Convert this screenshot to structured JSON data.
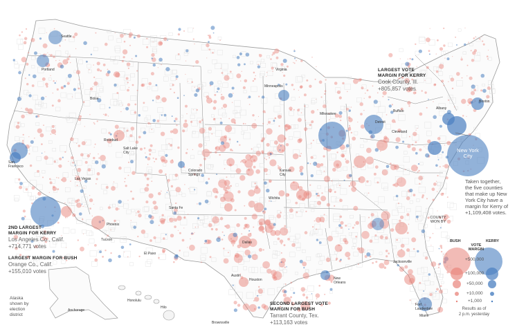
{
  "annotations": {
    "cook": {
      "heading": "LARGEST VOTE\nMARGIN FOR KERRY",
      "place": "Cook County, Ill.",
      "votes": "+805,857 votes"
    },
    "la": {
      "heading": "2ND LARGEST\nMARGIN FOR KERRY",
      "place": "Los Angeles Co., Calif.",
      "votes": "+714,771 votes"
    },
    "orange": {
      "heading": "LARGEST MARGIN FOR BUSH",
      "place": "Orange Co., Calif.",
      "votes": "+155,010 votes"
    },
    "tarrant": {
      "heading": "SECOND LARGEST VOTE\nMARGIN FOR BUSH",
      "place": "Tarrant County, Tex.",
      "votes": "+113,163 votes"
    },
    "nyc": {
      "label": "New York\nCity",
      "note": "Taken together,\nthe five counties\nthat make up New\nYork City have a\nmargin for Kerry of\n+1,109,408 votes."
    },
    "alaska": "Alaska\nshown by\nelection\ndistrict"
  },
  "legend": {
    "county_won_by": "COUNTY\nWON BY",
    "bush": "BUSH",
    "kerry": "KERRY",
    "vote_margin": "VOTE\nMARGIN",
    "rows": [
      "+500,000",
      "+100,000",
      "+50,000",
      "+10,000",
      "+1,000"
    ],
    "footnote": "Results as of\n2 p.m. yesterday"
  },
  "cities": [
    "Seattle",
    "Portland",
    "Boise",
    "Salt Lake\nCity",
    "San\nFrancisco",
    "Las Vegas",
    "Phoenix",
    "Tucson",
    "Colorado\nSprings",
    "Santa Fe",
    "El Paso",
    "Minneapolis",
    "Virginia",
    "Kansas\nCity",
    "Wichita",
    "Dallas",
    "Austin",
    "Houston",
    "New\nOrleans",
    "Jacksonville",
    "Fort\nLauderdale",
    "Miami",
    "Boston",
    "Buffalo",
    "Albany",
    "Detroit",
    "Cleveland",
    "Milwaukee",
    "Anchorage",
    "Honolulu",
    "Hilo",
    "Brownsville",
    "Rosebud"
  ],
  "colors": {
    "bush": "#e8837a",
    "kerry": "#4a7fc0",
    "border": "#cfcfcf",
    "state_border": "#8a8a8a"
  }
}
